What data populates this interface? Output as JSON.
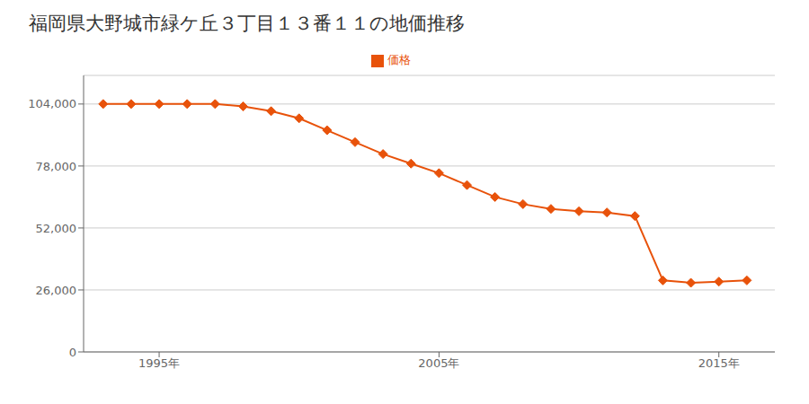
{
  "chart_data": {
    "type": "line",
    "title": "福岡県大野城市緑ケ丘３丁目１３番１１の地価推移",
    "x": [
      1993,
      1994,
      1995,
      1996,
      1997,
      1998,
      1999,
      2000,
      2001,
      2002,
      2003,
      2004,
      2005,
      2006,
      2007,
      2008,
      2009,
      2010,
      2011,
      2012,
      2013,
      2014,
      2015,
      2016
    ],
    "series": [
      {
        "name": "価格",
        "color": "#e8520a",
        "marker": "diamond",
        "values": [
          104000,
          104000,
          104000,
          104000,
          104000,
          103000,
          101000,
          98000,
          93000,
          88000,
          83000,
          79000,
          75000,
          70000,
          65000,
          62000,
          60000,
          59000,
          58500,
          57000,
          30000,
          29000,
          29500,
          30000
        ]
      }
    ],
    "xlim": [
      1992.3,
      2017.0
    ],
    "xticks": [
      {
        "value": 1995,
        "label": "1995年"
      },
      {
        "value": 2005,
        "label": "2005年"
      },
      {
        "value": 2015,
        "label": "2015年"
      }
    ],
    "ylim": [
      0,
      116000
    ],
    "yticks": [
      0,
      {
        "value": 26000,
        "label": "26,000"
      },
      {
        "value": 52000,
        "label": "52,000"
      },
      {
        "value": 78000,
        "label": "78,000"
      },
      {
        "value": 104000,
        "label": "104,000"
      }
    ],
    "grid": "y",
    "legend": "top"
  }
}
